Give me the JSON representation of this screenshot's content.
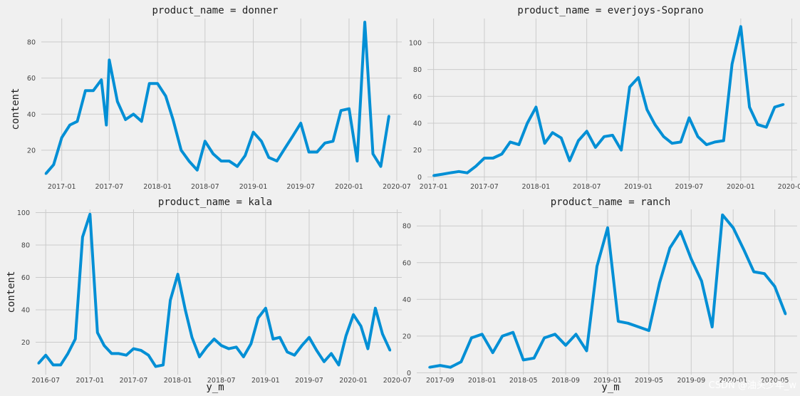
{
  "watermark": "CSDN @油头少年_w",
  "line_color": "#008fd5",
  "chart_data": [
    {
      "type": "line",
      "title": "product_name = donner",
      "ylabel": "content",
      "xlabel": "",
      "ylim": [
        3,
        93
      ],
      "xlim": [
        "2016-10-15",
        "2020-07-20"
      ],
      "yticks": [
        20,
        40,
        60,
        80
      ],
      "xticks": [
        "2017-01",
        "2017-07",
        "2018-01",
        "2018-07",
        "2019-01",
        "2019-07",
        "2020-01",
        "2020-07"
      ],
      "x": [
        "2016-11",
        "2016-12",
        "2017-01",
        "2017-02",
        "2017-03",
        "2017-04",
        "2017-05",
        "2017-06",
        "2017-06-20",
        "2017-07",
        "2017-08",
        "2017-09",
        "2017-10",
        "2017-11",
        "2017-12",
        "2018-01",
        "2018-02",
        "2018-03",
        "2018-04",
        "2018-05",
        "2018-06",
        "2018-07",
        "2018-08",
        "2018-09",
        "2018-10",
        "2018-11",
        "2018-12",
        "2019-01",
        "2019-02",
        "2019-03",
        "2019-04",
        "2019-05",
        "2019-06",
        "2019-07",
        "2019-08",
        "2019-09",
        "2019-10",
        "2019-11",
        "2019-12",
        "2020-01",
        "2020-02",
        "2020-03",
        "2020-04",
        "2020-05",
        "2020-06"
      ],
      "values": [
        7,
        12,
        27,
        34,
        36,
        53,
        53,
        59,
        34,
        70,
        47,
        37,
        40,
        36,
        57,
        57,
        50,
        37,
        20,
        14,
        9,
        25,
        18,
        14,
        14,
        11,
        17,
        30,
        25,
        16,
        14,
        21,
        28,
        35,
        19,
        19,
        24,
        25,
        42,
        43,
        14,
        91,
        18,
        11,
        39
      ]
    },
    {
      "type": "line",
      "title": "product_name = everjoys-Soprano",
      "ylabel": "",
      "xlabel": "",
      "ylim": [
        -3,
        118
      ],
      "xlim": [
        "2016-12-10",
        "2020-07-20"
      ],
      "yticks": [
        0,
        20,
        40,
        60,
        80,
        100
      ],
      "xticks": [
        "2017-01",
        "2017-07",
        "2018-01",
        "2018-07",
        "2019-01",
        "2019-07",
        "2020-01",
        "2020-07"
      ],
      "x": [
        "2017-01",
        "2017-02",
        "2017-03",
        "2017-04",
        "2017-05",
        "2017-06",
        "2017-07",
        "2017-08",
        "2017-09",
        "2017-10",
        "2017-11",
        "2017-12",
        "2018-01",
        "2018-02",
        "2018-03",
        "2018-04",
        "2018-05",
        "2018-06",
        "2018-07",
        "2018-08",
        "2018-09",
        "2018-10",
        "2018-11",
        "2018-12",
        "2019-01",
        "2019-02",
        "2019-03",
        "2019-04",
        "2019-05",
        "2019-06",
        "2019-07",
        "2019-08",
        "2019-09",
        "2019-10",
        "2019-11",
        "2019-12",
        "2020-01",
        "2020-02",
        "2020-03",
        "2020-04",
        "2020-05",
        "2020-06"
      ],
      "values": [
        1,
        2,
        3,
        4,
        3,
        8,
        14,
        14,
        17,
        26,
        24,
        40,
        52,
        25,
        33,
        29,
        12,
        27,
        34,
        22,
        30,
        31,
        20,
        67,
        74,
        50,
        39,
        30,
        25,
        26,
        44,
        30,
        24,
        26,
        27,
        84,
        112,
        52,
        39,
        37,
        52,
        54
      ]
    },
    {
      "type": "line",
      "title": "product_name = kala",
      "ylabel": "content",
      "xlabel": "y_m",
      "ylim": [
        0,
        102
      ],
      "xlim": [
        "2016-05-20",
        "2020-07-20"
      ],
      "yticks": [
        20,
        40,
        60,
        80,
        100
      ],
      "xticks": [
        "2016-07",
        "2017-01",
        "2017-07",
        "2018-01",
        "2018-07",
        "2019-01",
        "2019-07",
        "2020-01",
        "2020-07"
      ],
      "x": [
        "2016-06",
        "2016-07",
        "2016-08",
        "2016-09",
        "2016-10",
        "2016-11",
        "2016-12",
        "2017-01",
        "2017-02",
        "2017-03",
        "2017-04",
        "2017-05",
        "2017-06",
        "2017-07",
        "2017-08",
        "2017-09",
        "2017-10",
        "2017-11",
        "2017-12",
        "2018-01",
        "2018-02",
        "2018-03",
        "2018-04",
        "2018-05",
        "2018-06",
        "2018-07",
        "2018-08",
        "2018-09",
        "2018-10",
        "2018-11",
        "2018-12",
        "2019-01",
        "2019-02",
        "2019-03",
        "2019-04",
        "2019-05",
        "2019-06",
        "2019-07",
        "2019-08",
        "2019-09",
        "2019-10",
        "2019-11",
        "2019-12",
        "2020-01",
        "2020-02",
        "2020-03",
        "2020-04",
        "2020-05",
        "2020-06"
      ],
      "values": [
        7,
        12,
        6,
        6,
        13,
        22,
        85,
        99,
        26,
        18,
        13,
        13,
        12,
        16,
        15,
        12,
        5,
        6,
        46,
        62,
        40,
        23,
        11,
        17,
        22,
        18,
        16,
        17,
        11,
        19,
        35,
        41,
        22,
        23,
        14,
        12,
        18,
        23,
        15,
        8,
        13,
        6,
        24,
        37,
        30,
        16,
        41,
        25,
        15
      ]
    },
    {
      "type": "line",
      "title": "product_name = ranch",
      "ylabel": "",
      "xlabel": "y_m",
      "ylim": [
        -1,
        89
      ],
      "xlim": [
        "2017-06-25",
        "2020-07-05"
      ],
      "yticks": [
        0,
        20,
        40,
        60,
        80
      ],
      "xticks": [
        "2017-09",
        "2018-01",
        "2018-05",
        "2018-09",
        "2019-01",
        "2019-05",
        "2019-09",
        "2020-01",
        "2020-05"
      ],
      "x": [
        "2017-08",
        "2017-09",
        "2017-10",
        "2017-11",
        "2017-12",
        "2018-01",
        "2018-02",
        "2018-03",
        "2018-04",
        "2018-05",
        "2018-06",
        "2018-07",
        "2018-08",
        "2018-09",
        "2018-10",
        "2018-11",
        "2018-12",
        "2019-01",
        "2019-02",
        "2019-03",
        "2019-04",
        "2019-05",
        "2019-06",
        "2019-07",
        "2019-08",
        "2019-09",
        "2019-10",
        "2019-11",
        "2019-12",
        "2020-01",
        "2020-02",
        "2020-03",
        "2020-04",
        "2020-05",
        "2020-06"
      ],
      "values": [
        3,
        4,
        3,
        6,
        19,
        21,
        11,
        20,
        22,
        7,
        8,
        19,
        21,
        15,
        21,
        12,
        58,
        79,
        28,
        27,
        25,
        23,
        49,
        68,
        77,
        62,
        50,
        25,
        86,
        79,
        67,
        55,
        54,
        47,
        32
      ]
    }
  ]
}
